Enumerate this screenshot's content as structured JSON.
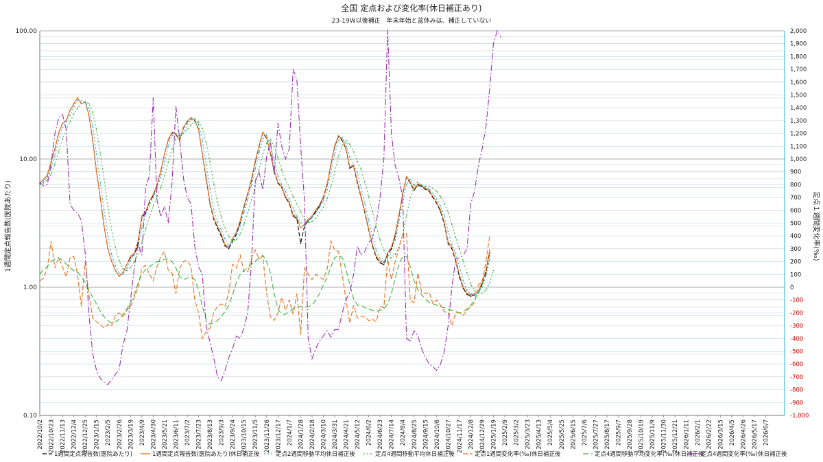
{
  "chart_data": {
    "type": "line",
    "title": "全国 定点および変化率(休日補正あり)",
    "subtitle": "23-19W以後補正　年末年始と盆休みは、補正していない",
    "ylabel": "1週間定点報告数(医院あたり)",
    "y2label": "定点１週間変化率(‰)",
    "yscale": "log",
    "ylim": [
      0.1,
      100
    ],
    "y2lim": [
      -1000,
      2000
    ],
    "y_ticks": [
      "0.10",
      "1.00",
      "10.00",
      "100.00"
    ],
    "y2_ticks": [
      "-1,000",
      "-900",
      "-800",
      "-700",
      "-600",
      "-500",
      "-400",
      "-300",
      "-200",
      "-100",
      "0",
      "100",
      "200",
      "300",
      "400",
      "500",
      "600",
      "700",
      "800",
      "900",
      "1,000",
      "1,100",
      "1,200",
      "1,300",
      "1,400",
      "1,500",
      "1,600",
      "1,700",
      "1,800",
      "1,900",
      "2,000"
    ],
    "x_ticks": [
      "2022/10/2",
      "2022/10/23",
      "2022/11/13",
      "2022/12/4",
      "2022/12/25",
      "2023/1/15",
      "2023/2/5",
      "2023/2/26",
      "2023/3/19",
      "2023/4/9",
      "2023/4/30",
      "2023/5/21",
      "2023/6/11",
      "2023/7/2",
      "2023/7/23",
      "2023/8/13",
      "2023/9/3",
      "2023/9/24",
      "2023/10/15",
      "2023/11/5",
      "2023/11/26",
      "2023/12/17",
      "2024/1/7",
      "2024/1/28",
      "2024/2/18",
      "2024/3/10",
      "2024/3/31",
      "2024/4/21",
      "2024/5/12",
      "2024/6/2",
      "2024/6/23",
      "2024/7/14",
      "2024/8/4",
      "2024/8/25",
      "2024/9/15",
      "2024/10/6",
      "2024/10/27",
      "2024/11/17",
      "2024/12/8",
      "2024/12/29",
      "2025/1/19",
      "2025/2/9",
      "2025/3/2",
      "2025/3/23",
      "2025/4/13",
      "2025/5/4",
      "2025/5/25",
      "2025/6/15",
      "2025/7/6",
      "2025/7/27",
      "2025/8/17",
      "2025/9/7",
      "2025/9/28",
      "2025/10/19",
      "2025/11/9",
      "2025/11/30",
      "2025/12/21",
      "2026/1/11",
      "2026/2/1",
      "2026/2/22",
      "2026/3/15",
      "2026/4/5",
      "2026/4/26",
      "2026/5/17",
      "2026/6/7"
    ],
    "grid": true,
    "legend_placement": "bottom",
    "week_start": "2022/10/2",
    "series": [
      {
        "name": "1週間定点報告数(医院あたり)",
        "axis": "left",
        "color": "#000000",
        "dash": "6 3",
        "values": [
          6.5,
          6.9,
          7.5,
          9.5,
          12,
          16,
          19,
          20,
          24,
          27,
          30,
          27,
          28,
          22,
          14,
          8,
          5,
          3,
          2,
          1.6,
          1.35,
          1.22,
          1.3,
          1.5,
          1.7,
          1.8,
          2.2,
          3.5,
          3.8,
          4.6,
          5.2,
          6.2,
          8,
          11,
          14,
          16,
          15.5,
          14,
          17.5,
          19.5,
          21,
          20,
          17,
          11,
          7,
          4.5,
          3.4,
          2.9,
          2.5,
          2.1,
          2.0,
          2.3,
          2.6,
          3.2,
          4.2,
          5.3,
          6.8,
          9.5,
          12.5,
          16,
          14.5,
          11,
          8,
          6.5,
          6,
          5,
          4.5,
          3.6,
          3.4,
          2.2,
          3.0,
          3.3,
          3.5,
          3.9,
          4.3,
          5,
          6.3,
          9,
          12.5,
          15,
          14,
          12,
          8.5,
          8.8,
          6.5,
          5,
          3.8,
          2.8,
          2.1,
          1.7,
          1.55,
          1.5,
          1.8,
          2.0,
          2.5,
          3.6,
          5.3,
          7.2,
          6.5,
          5.7,
          6.3,
          6.1,
          5.8,
          5.6,
          5.0,
          4.5,
          3.9,
          3.1,
          2.2,
          2.0,
          1.6,
          1.2,
          0.98,
          0.88,
          0.85,
          0.87,
          0.9,
          1.05,
          1.3,
          1.85
        ]
      },
      {
        "name": "1週間定点報告数(医院あたり)休日補正後",
        "axis": "left",
        "color": "#e86f1a",
        "dash": "",
        "values": [
          6.5,
          6.9,
          7.5,
          9.5,
          12,
          16,
          19,
          20,
          24,
          27,
          30,
          27,
          28,
          22,
          14,
          8,
          5,
          3,
          2,
          1.6,
          1.35,
          1.22,
          1.3,
          1.5,
          1.75,
          1.85,
          2.3,
          3.6,
          3.9,
          4.7,
          5.3,
          6.3,
          8.1,
          11,
          14.2,
          16.2,
          15.7,
          14.2,
          17.7,
          19.7,
          21,
          20.2,
          17.2,
          11,
          7.2,
          4.6,
          3.5,
          3.0,
          2.6,
          2.15,
          2.05,
          2.4,
          2.7,
          3.3,
          4.3,
          5.4,
          7,
          9.7,
          12.7,
          16.2,
          14.7,
          11.2,
          8.2,
          6.6,
          6.1,
          5.1,
          4.6,
          3.7,
          3.5,
          2.9,
          3.1,
          3.4,
          3.6,
          4.0,
          4.4,
          5.1,
          6.4,
          9.2,
          12.7,
          15.2,
          14.2,
          12.2,
          8.7,
          9.0,
          6.7,
          5.1,
          3.9,
          2.85,
          2.15,
          1.75,
          1.6,
          1.55,
          1.85,
          2.05,
          2.6,
          3.7,
          5.4,
          7.3,
          6.6,
          5.8,
          6.4,
          6.2,
          5.9,
          5.7,
          5.1,
          4.6,
          4.0,
          3.2,
          2.25,
          2.05,
          1.65,
          1.25,
          1.0,
          0.9,
          0.87,
          0.89,
          0.93,
          1.1,
          1.35,
          1.95
        ]
      },
      {
        "name": "定点2週間移動平均休日補正後",
        "axis": "left",
        "color": "#29a8d6",
        "dash": "2 3",
        "values": [
          6.4,
          6.7,
          7.2,
          8.5,
          10.7,
          14,
          17.5,
          19.5,
          22,
          25.5,
          28.5,
          28.5,
          27.5,
          25,
          18,
          11,
          6.5,
          4,
          2.5,
          1.8,
          1.48,
          1.28,
          1.26,
          1.4,
          1.62,
          1.8,
          2.05,
          2.9,
          3.7,
          4.3,
          5,
          5.8,
          7.2,
          9.5,
          12.6,
          15.2,
          15.9,
          14.9,
          15.9,
          18.7,
          20.3,
          20.6,
          18.7,
          14.1,
          9.1,
          5.9,
          4.05,
          3.25,
          2.8,
          2.38,
          2.1,
          2.22,
          2.55,
          3.0,
          3.8,
          4.85,
          6.2,
          8.35,
          11.2,
          14.4,
          15.4,
          12.9,
          9.7,
          7.4,
          6.35,
          5.6,
          4.85,
          4.15,
          3.6,
          3.2,
          3.0,
          3.25,
          3.5,
          3.8,
          4.2,
          4.75,
          5.75,
          7.8,
          10.9,
          13.9,
          14.7,
          13.2,
          10.4,
          8.85,
          7.85,
          5.9,
          4.5,
          3.35,
          2.5,
          1.95,
          1.68,
          1.58,
          1.7,
          1.95,
          2.32,
          3.15,
          4.55,
          6.35,
          6.95,
          6.2,
          6.1,
          6.3,
          6.05,
          5.8,
          5.4,
          4.85,
          4.3,
          3.6,
          2.72,
          2.15,
          1.85,
          1.45,
          1.12,
          0.95,
          0.885,
          0.88,
          0.91,
          1.01,
          1.22,
          1.65
        ]
      },
      {
        "name": "定点4週間移動平均休日補正後",
        "axis": "left",
        "color": "#3cb43c",
        "dash": "2 3",
        "values": [
          6.3,
          6.5,
          6.9,
          7.6,
          9.1,
          11.5,
          14.5,
          17,
          19.5,
          22.5,
          25,
          27,
          28,
          27,
          23,
          17,
          11,
          7,
          4.3,
          2.8,
          2.05,
          1.6,
          1.4,
          1.35,
          1.42,
          1.58,
          1.82,
          2.25,
          2.85,
          3.55,
          4.3,
          5.1,
          6,
          7.4,
          9.5,
          12,
          14.2,
          15.2,
          15.8,
          16.9,
          18.5,
          19.6,
          19.5,
          17.3,
          13.4,
          9.5,
          6.4,
          4.6,
          3.55,
          2.9,
          2.5,
          2.3,
          2.35,
          2.6,
          3.1,
          3.8,
          4.8,
          6.2,
          8.3,
          11,
          13.3,
          14.2,
          12.6,
          10.3,
          8.2,
          6.9,
          6.0,
          5.1,
          4.45,
          3.9,
          3.4,
          3.2,
          3.25,
          3.45,
          3.8,
          4.2,
          4.9,
          6.1,
          8,
          10.5,
          12.8,
          14,
          13,
          11.4,
          9.6,
          8.3,
          6.6,
          5.1,
          3.9,
          3.0,
          2.35,
          1.95,
          1.72,
          1.7,
          1.8,
          2.05,
          2.6,
          3.6,
          5.0,
          6.3,
          6.6,
          6.2,
          6.15,
          6.1,
          5.9,
          5.6,
          5.1,
          4.5,
          3.85,
          3.1,
          2.45,
          2.0,
          1.6,
          1.3,
          1.06,
          0.94,
          0.9,
          0.9,
          0.95,
          1.08,
          1.35
        ]
      },
      {
        "name": "定点1週間変化率(‰)休日補正後",
        "axis": "right",
        "color": "#e86f1a",
        "dash": "7 3",
        "values": [
          50,
          70,
          150,
          360,
          150,
          230,
          160,
          80,
          230,
          240,
          100,
          -150,
          200,
          -60,
          -240,
          -270,
          -290,
          -320,
          -290,
          -300,
          -220,
          -200,
          -230,
          -180,
          -150,
          -80,
          0,
          150,
          170,
          100,
          50,
          160,
          240,
          280,
          130,
          110,
          -50,
          150,
          200,
          210,
          160,
          -100,
          -200,
          -400,
          -350,
          -320,
          -200,
          -150,
          -130,
          -150,
          -40,
          180,
          150,
          250,
          120,
          120,
          230,
          290,
          220,
          240,
          -50,
          -230,
          -260,
          -200,
          -80,
          -180,
          -100,
          -210,
          -50,
          -370,
          150,
          100,
          60,
          100,
          80,
          60,
          140,
          360,
          290,
          280,
          100,
          -100,
          -280,
          -140,
          -240,
          -230,
          -230,
          -260,
          -250,
          -270,
          -150,
          -160,
          220,
          60,
          200,
          300,
          410,
          420,
          -100,
          -120,
          110,
          -40,
          -50,
          -40,
          -130,
          -100,
          -140,
          -190,
          -200,
          -300,
          -200,
          -200,
          -220,
          -180,
          -150,
          -120,
          20,
          40,
          200,
          400
        ]
      },
      {
        "name": "定点4週間移動平均変化率(‰)休日補正後",
        "axis": "right",
        "color": "#3cb43c",
        "dash": "8 4",
        "values": [
          100,
          140,
          160,
          200,
          220,
          230,
          210,
          180,
          150,
          130,
          120,
          80,
          40,
          -20,
          -80,
          -130,
          -190,
          -230,
          -260,
          -280,
          -270,
          -250,
          -210,
          -170,
          -120,
          -60,
          30,
          100,
          140,
          160,
          180,
          200,
          200,
          220,
          220,
          200,
          150,
          80,
          60,
          70,
          80,
          60,
          -20,
          -150,
          -250,
          -290,
          -280,
          -260,
          -230,
          -190,
          -140,
          -60,
          40,
          100,
          130,
          150,
          180,
          200,
          230,
          250,
          200,
          110,
          -50,
          -170,
          -210,
          -210,
          -190,
          -170,
          -160,
          -150,
          -160,
          -150,
          -140,
          -100,
          -50,
          20,
          80,
          160,
          230,
          250,
          230,
          140,
          20,
          -90,
          -140,
          -140,
          -160,
          -170,
          -180,
          -190,
          -180,
          -170,
          -130,
          -50,
          70,
          180,
          240,
          240,
          160,
          50,
          -20,
          -60,
          -90,
          -120,
          -130,
          -140,
          -150,
          -160,
          -170,
          -180,
          -190,
          -200,
          -190,
          -170,
          -140,
          -100,
          -40,
          20,
          100
        ]
      },
      {
        "name": "定点4週間変化率(‰)休日補正後",
        "axis": "right",
        "color": "#9b2cae",
        "dash": "9 3 2 3",
        "values": [
          820,
          790,
          800,
          960,
          1200,
          1320,
          1350,
          1230,
          650,
          600,
          580,
          520,
          270,
          -210,
          -520,
          -650,
          -710,
          -740,
          -760,
          -720,
          -680,
          -640,
          -450,
          -350,
          -100,
          150,
          340,
          250,
          780,
          870,
          1480,
          680,
          550,
          630,
          500,
          820,
          1410,
          1150,
          850,
          700,
          650,
          320,
          160,
          100,
          -300,
          -430,
          -550,
          -700,
          -730,
          -650,
          -550,
          -480,
          -380,
          -400,
          -320,
          -200,
          200,
          830,
          900,
          760,
          1020,
          1140,
          880,
          1280,
          1100,
          1000,
          1080,
          1700,
          1620,
          1100,
          680,
          -400,
          -560,
          -480,
          -420,
          -380,
          -340,
          -390,
          -330,
          -330,
          -200,
          -100,
          -40,
          100,
          320,
          250,
          280,
          350,
          380,
          500,
          700,
          1000,
          2090,
          1200,
          950,
          850,
          700,
          -400,
          -420,
          -340,
          -380,
          -480,
          -550,
          -600,
          -620,
          -650,
          -600,
          -500,
          -300,
          0,
          220,
          230,
          250,
          300,
          650,
          750,
          950,
          1080,
          1250,
          1550,
          1900,
          2000,
          1950
        ]
      }
    ]
  }
}
